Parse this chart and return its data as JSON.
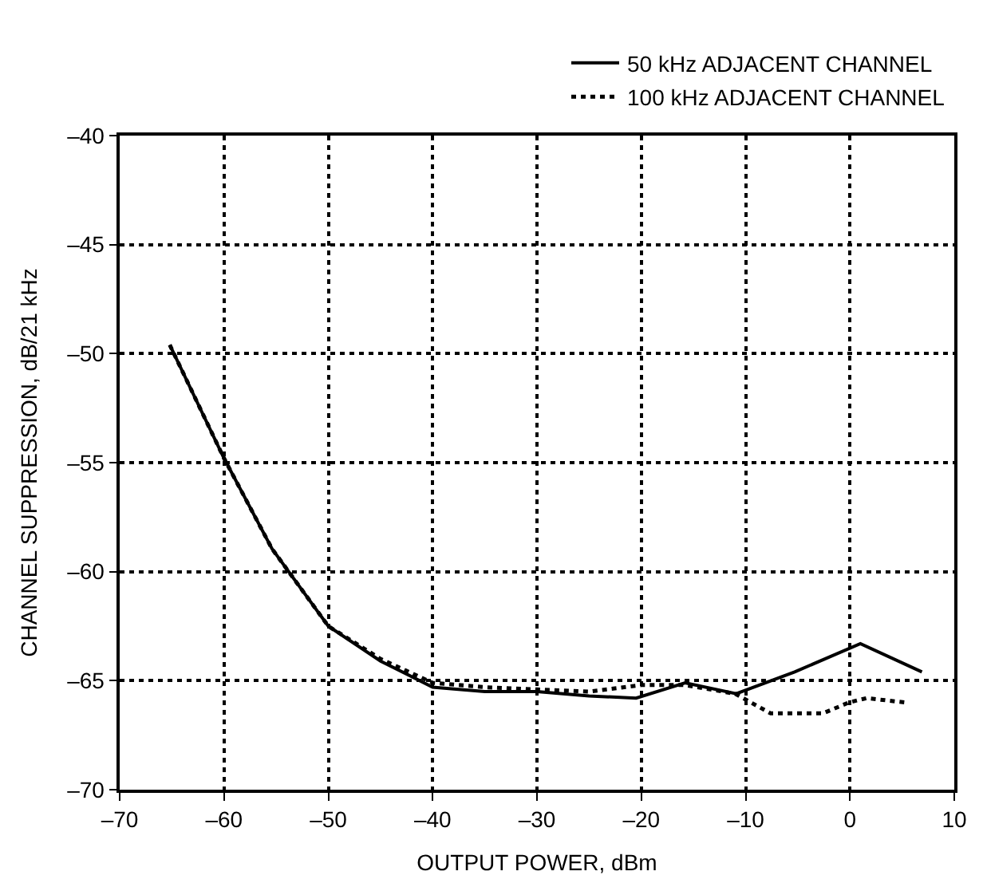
{
  "chart_data": {
    "type": "line",
    "xlabel": "OUTPUT POWER, dBm",
    "ylabel": "CHANNEL SUPPRESSION, dB/21 kHz",
    "xlim": [
      -70,
      10
    ],
    "xticks": [
      {
        "value": -70,
        "label": "–70"
      },
      {
        "value": -60,
        "label": "–60"
      },
      {
        "value": -50,
        "label": "–50"
      },
      {
        "value": -40,
        "label": "–40"
      },
      {
        "value": -30,
        "label": "–30"
      },
      {
        "value": -20,
        "label": "–20"
      },
      {
        "value": -10,
        "label": "–10"
      },
      0,
      10
    ],
    "ylim": [
      -70,
      -40
    ],
    "yticks": [
      {
        "value": -70,
        "label": "–70"
      },
      {
        "value": -65,
        "label": "–65"
      },
      {
        "value": -60,
        "label": "–60"
      },
      {
        "value": -55,
        "label": "–55"
      },
      {
        "value": -50,
        "label": "–50"
      },
      {
        "value": -45,
        "label": "–45"
      },
      {
        "value": -40,
        "label": "–40"
      }
    ],
    "grid": true,
    "legend": "top right",
    "series": [
      {
        "name": "50 kHz ADJACENT CHANNEL",
        "color": "#000000",
        "line_style": "solid",
        "x": [
          -65.2,
          -60,
          -55.4,
          -50,
          -45,
          -40,
          -35,
          -30,
          -25,
          -20.5,
          -15.8,
          -10.9,
          -5.3,
          1,
          6.9
        ],
        "values": [
          -49.6,
          -54.8,
          -58.95,
          -62.5,
          -64.1,
          -65.3,
          -65.5,
          -65.5,
          -65.7,
          -65.8,
          -65.1,
          -65.6,
          -64.6,
          -63.3,
          -64.6
        ]
      },
      {
        "name": "100 kHz ADJACENT CHANNEL",
        "color": "#000000",
        "line_style": "dotted",
        "x": [
          -65.2,
          -60,
          -55.4,
          -50,
          -45,
          -40,
          -35,
          -30,
          -25,
          -20,
          -15.8,
          -11,
          -7.6,
          -2.6,
          -0.1,
          1.6,
          5.3
        ],
        "values": [
          -49.6,
          -54.8,
          -58.95,
          -62.5,
          -64.0,
          -65.1,
          -65.3,
          -65.4,
          -65.5,
          -65.2,
          -65.2,
          -65.6,
          -66.5,
          -66.5,
          -66.0,
          -65.8,
          -66.0
        ]
      }
    ]
  }
}
